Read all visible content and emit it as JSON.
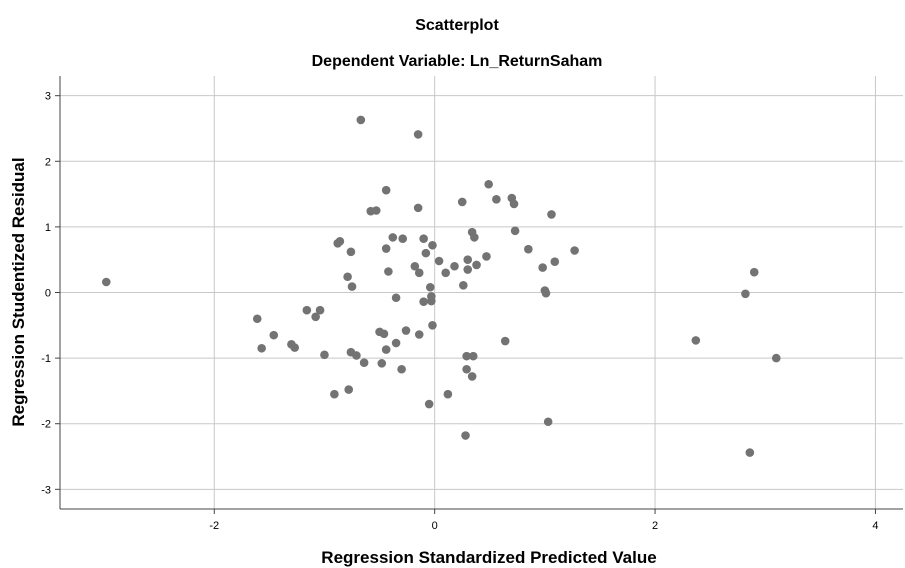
{
  "chart_data": {
    "type": "scatter",
    "title": "Scatterplot",
    "subtitle": "Dependent Variable: Ln_ReturnSaham",
    "xlabel": "Regression Standardized Predicted Value",
    "ylabel": "Regression Studentized Residual",
    "xlim": [
      -3.4,
      4.25
    ],
    "ylim": [
      -3.3,
      3.3
    ],
    "xticks": [
      -2,
      0,
      2,
      4
    ],
    "yticks": [
      3,
      2,
      1,
      0,
      -1,
      -2,
      -3
    ],
    "xtick_labels": [
      "-2",
      "0",
      "2",
      "4"
    ],
    "ytick_labels": [
      "3",
      "2",
      "1",
      "0",
      "-1",
      "-2",
      "-3"
    ],
    "grid": true,
    "colors": {
      "point": "#737373",
      "grid": "#c8c8c8",
      "axis": "#444444",
      "text": "#000000"
    },
    "points": [
      [
        -0.67,
        2.63
      ],
      [
        -0.15,
        2.41
      ],
      [
        0.49,
        1.65
      ],
      [
        -0.44,
        1.56
      ],
      [
        0.56,
        1.42
      ],
      [
        0.7,
        1.44
      ],
      [
        0.72,
        1.35
      ],
      [
        0.25,
        1.38
      ],
      [
        -0.58,
        1.24
      ],
      [
        -0.53,
        1.25
      ],
      [
        -0.15,
        1.29
      ],
      [
        1.06,
        1.19
      ],
      [
        0.34,
        0.92
      ],
      [
        0.36,
        0.84
      ],
      [
        0.73,
        0.94
      ],
      [
        -0.38,
        0.84
      ],
      [
        -0.29,
        0.82
      ],
      [
        -0.1,
        0.82
      ],
      [
        -0.02,
        0.72
      ],
      [
        -0.86,
        0.78
      ],
      [
        -0.88,
        0.75
      ],
      [
        -0.76,
        0.62
      ],
      [
        -0.44,
        0.67
      ],
      [
        0.85,
        0.66
      ],
      [
        1.27,
        0.64
      ],
      [
        -0.08,
        0.6
      ],
      [
        0.47,
        0.55
      ],
      [
        0.04,
        0.48
      ],
      [
        0.3,
        0.5
      ],
      [
        0.38,
        0.42
      ],
      [
        -0.18,
        0.4
      ],
      [
        0.18,
        0.4
      ],
      [
        0.1,
        0.3
      ],
      [
        -0.14,
        0.3
      ],
      [
        -0.42,
        0.32
      ],
      [
        0.3,
        0.35
      ],
      [
        0.98,
        0.38
      ],
      [
        1.09,
        0.47
      ],
      [
        -0.79,
        0.24
      ],
      [
        -0.75,
        0.09
      ],
      [
        0.26,
        0.11
      ],
      [
        1.0,
        0.03
      ],
      [
        1.01,
        -0.01
      ],
      [
        -0.04,
        0.08
      ],
      [
        -0.03,
        -0.06
      ],
      [
        -0.35,
        -0.08
      ],
      [
        -0.1,
        -0.14
      ],
      [
        -0.03,
        -0.13
      ],
      [
        -2.98,
        0.16
      ],
      [
        -1.04,
        -0.27
      ],
      [
        -1.16,
        -0.27
      ],
      [
        -1.08,
        -0.37
      ],
      [
        -1.61,
        -0.4
      ],
      [
        -0.02,
        -0.5
      ],
      [
        -0.5,
        -0.6
      ],
      [
        -0.46,
        -0.63
      ],
      [
        -0.26,
        -0.58
      ],
      [
        -0.14,
        -0.64
      ],
      [
        -1.46,
        -0.65
      ],
      [
        -1.3,
        -0.79
      ],
      [
        -1.27,
        -0.84
      ],
      [
        -1.57,
        -0.85
      ],
      [
        -0.35,
        -0.77
      ],
      [
        -0.44,
        -0.87
      ],
      [
        -0.76,
        -0.91
      ],
      [
        -0.71,
        -0.96
      ],
      [
        -1.0,
        -0.95
      ],
      [
        -0.64,
        -1.07
      ],
      [
        -0.48,
        -1.08
      ],
      [
        -0.3,
        -1.17
      ],
      [
        0.29,
        -0.97
      ],
      [
        0.35,
        -0.97
      ],
      [
        0.29,
        -1.17
      ],
      [
        0.34,
        -1.28
      ],
      [
        0.64,
        -0.74
      ],
      [
        -0.78,
        -1.48
      ],
      [
        -0.91,
        -1.55
      ],
      [
        0.12,
        -1.55
      ],
      [
        -0.05,
        -1.7
      ],
      [
        1.03,
        -1.97
      ],
      [
        0.28,
        -2.18
      ],
      [
        2.37,
        -0.73
      ],
      [
        2.82,
        -0.02
      ],
      [
        2.9,
        0.31
      ],
      [
        3.1,
        -1.0
      ],
      [
        2.86,
        -2.44
      ]
    ]
  }
}
